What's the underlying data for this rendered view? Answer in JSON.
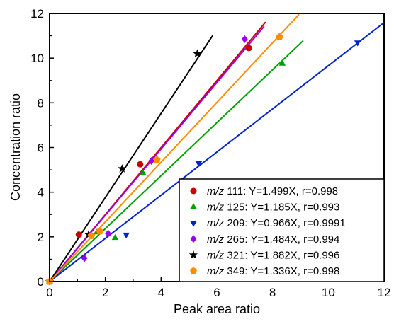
{
  "chart_data": {
    "type": "scatter",
    "title": "",
    "xlabel": "Peak area ratio",
    "ylabel": "Concentration ratio",
    "xlim": [
      0,
      12
    ],
    "ylim": [
      0,
      12
    ],
    "xticks": [
      0,
      2,
      4,
      6,
      8,
      10,
      12
    ],
    "yticks": [
      0,
      2,
      4,
      6,
      8,
      10,
      12
    ],
    "grid": false,
    "legend_position": "bottom-right",
    "series": [
      {
        "name": "m/z 111: Y=1.499X, r=0.998",
        "ion": "m/z",
        "rest": " 111: Y=1.499X, r=0.998",
        "color": "#cc0000",
        "marker": "circle",
        "slope": 1.499,
        "fit_x": [
          0,
          7.75
        ],
        "points": [
          [
            0,
            0
          ],
          [
            1.05,
            2.1
          ],
          [
            3.25,
            5.25
          ],
          [
            7.15,
            10.45
          ]
        ]
      },
      {
        "name": "m/z 125: Y=1.185X, r=0.993",
        "ion": "m/z",
        "rest": " 125: Y=1.185X, r=0.993",
        "color": "#00a000",
        "marker": "triangle-up",
        "slope": 1.185,
        "fit_x": [
          0,
          9.1
        ],
        "points": [
          [
            0,
            0
          ],
          [
            1.7,
            2.2
          ],
          [
            2.35,
            1.95
          ],
          [
            3.35,
            4.85
          ],
          [
            8.35,
            9.75
          ]
        ]
      },
      {
        "name": "m/z 209: Y=0.966X, r=0.9991",
        "ion": "m/z",
        "rest": " 209: Y=0.966X, r=0.9991",
        "color": "#0022cc",
        "marker": "triangle-down",
        "slope": 0.966,
        "fit_x": [
          0,
          12
        ],
        "points": [
          [
            0,
            0
          ],
          [
            2.75,
            2.1
          ],
          [
            5.35,
            5.3
          ],
          [
            11.05,
            10.7
          ]
        ]
      },
      {
        "name": "m/z 265: Y=1.484X, r=0.994",
        "ion": "m/z",
        "rest": " 265: Y=1.484X, r=0.994",
        "color": "#9900ee",
        "marker": "diamond",
        "slope": 1.484,
        "fit_x": [
          0,
          7.7
        ],
        "points": [
          [
            0,
            0
          ],
          [
            1.25,
            1.05
          ],
          [
            2.1,
            2.15
          ],
          [
            3.65,
            5.4
          ],
          [
            7.0,
            10.85
          ]
        ]
      },
      {
        "name": "m/z 321: Y=1.882X, r=0.996",
        "ion": "m/z",
        "rest": " 321: Y=1.882X, r=0.996",
        "color": "#000000",
        "marker": "star",
        "slope": 1.882,
        "fit_x": [
          0,
          5.85
        ],
        "points": [
          [
            0,
            0
          ],
          [
            1.4,
            2.1
          ],
          [
            2.6,
            5.05
          ],
          [
            5.3,
            10.2
          ]
        ]
      },
      {
        "name": "m/z 349: Y=1.336X, r=0.998",
        "ion": "m/z",
        "rest": " 349: Y=1.336X, r=0.998",
        "color": "#ff8c00",
        "marker": "pentagon",
        "slope": 1.336,
        "fit_x": [
          0,
          8.95
        ],
        "points": [
          [
            0,
            0
          ],
          [
            1.5,
            2.05
          ],
          [
            1.8,
            2.25
          ],
          [
            3.85,
            5.45
          ],
          [
            8.25,
            10.95
          ]
        ]
      }
    ]
  }
}
